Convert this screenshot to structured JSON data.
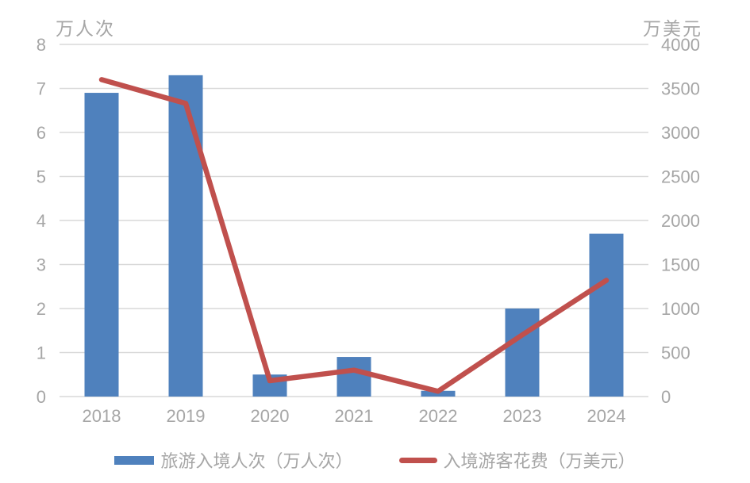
{
  "chart_data": {
    "type": "bar+line",
    "categories": [
      "2018",
      "2019",
      "2020",
      "2021",
      "2022",
      "2023",
      "2024"
    ],
    "series": [
      {
        "name": "旅游入境人次（万人次）",
        "type": "bar",
        "axis": "left",
        "values": [
          6.9,
          7.3,
          0.5,
          0.9,
          0.13,
          2.0,
          3.7
        ]
      },
      {
        "name": "入境游客花费（万美元）",
        "type": "line",
        "axis": "right",
        "values": [
          3600,
          3330,
          180,
          300,
          60,
          700,
          1320
        ]
      }
    ],
    "left_axis": {
      "title": "万人次",
      "min": 0,
      "max": 8,
      "step": 1,
      "ticks": [
        "0",
        "1",
        "2",
        "3",
        "4",
        "5",
        "6",
        "7",
        "8"
      ]
    },
    "right_axis": {
      "title": "万美元",
      "min": 0,
      "max": 4000,
      "step": 500,
      "ticks": [
        "0",
        "500",
        "1000",
        "1500",
        "2000",
        "2500",
        "3000",
        "3500",
        "4000"
      ]
    },
    "grid": true,
    "legend_position": "bottom",
    "colors": {
      "bar": "#4f81bd",
      "line": "#c0504d",
      "grid": "#d9d9d9",
      "text": "#a6a6a6",
      "background": "#ffffff"
    }
  },
  "legend": {
    "bar_label": "旅游入境人次（万人次）",
    "line_label": "入境游客花费（万美元）"
  }
}
